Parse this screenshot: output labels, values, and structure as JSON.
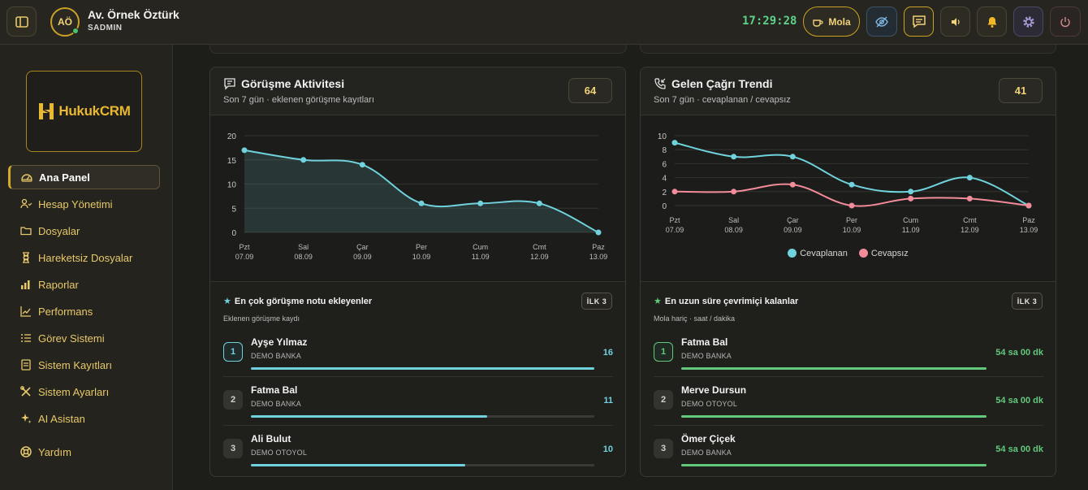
{
  "header": {
    "user_initials": "AÖ",
    "user_name": "Av. Örnek Öztürk",
    "user_role": "SADMIN",
    "clock": "17:29:28",
    "break_label": "Mola"
  },
  "sidebar": {
    "logo_text": "HukukCRM",
    "items": [
      {
        "label": "Ana Panel",
        "icon": "gauge-icon",
        "active": true
      },
      {
        "label": "Hesap Yönetimi",
        "icon": "users-icon"
      },
      {
        "label": "Dosyalar",
        "icon": "folder-icon"
      },
      {
        "label": "Hareketsiz Dosyalar",
        "icon": "hourglass-icon"
      },
      {
        "label": "Raporlar",
        "icon": "bar-chart-icon"
      },
      {
        "label": "Performans",
        "icon": "trend-icon"
      },
      {
        "label": "Görev Sistemi",
        "icon": "list-icon"
      },
      {
        "label": "Sistem Kayıtları",
        "icon": "log-icon"
      },
      {
        "label": "Sistem Ayarları",
        "icon": "tools-icon"
      },
      {
        "label": "AI Asistan",
        "icon": "sparkle-icon"
      },
      {
        "label": "Yardım",
        "icon": "lifebuoy-icon"
      }
    ]
  },
  "cards": {
    "activity": {
      "title": "Görüşme Aktivitesi",
      "subtitle": "Son 7 gün · eklenen görüşme kayıtları",
      "count": "64",
      "ranking_title": "En çok görüşme notu ekleyenler",
      "ranking_subtitle": "Eklenen görüşme kaydı",
      "badge": "İLK 3",
      "rows": [
        {
          "rank": "1",
          "name": "Ayşe Yılmaz",
          "org": "DEMO BANKA",
          "value": "16",
          "fraction": 1.0
        },
        {
          "rank": "2",
          "name": "Fatma Bal",
          "org": "DEMO BANKA",
          "value": "11",
          "fraction": 0.6875
        },
        {
          "rank": "3",
          "name": "Ali Bulut",
          "org": "DEMO OTOYOL",
          "value": "10",
          "fraction": 0.625
        }
      ]
    },
    "calls": {
      "title": "Gelen Çağrı Trendi",
      "subtitle": "Son 7 gün · cevaplanan / cevapsız",
      "count": "41",
      "ranking_title": "En uzun süre çevrimiçi kalanlar",
      "ranking_subtitle": "Mola hariç · saat / dakika",
      "badge": "İLK 3",
      "rows": [
        {
          "rank": "1",
          "name": "Fatma Bal",
          "org": "DEMO BANKA",
          "value": "54 sa 00 dk",
          "fraction": 1.0
        },
        {
          "rank": "2",
          "name": "Merve Dursun",
          "org": "DEMO OTOYOL",
          "value": "54 sa 00 dk",
          "fraction": 1.0
        },
        {
          "rank": "3",
          "name": "Ömer Çiçek",
          "org": "DEMO BANKA",
          "value": "54 sa 00 dk",
          "fraction": 1.0
        }
      ]
    }
  },
  "chart_data": [
    {
      "type": "area",
      "title": "",
      "categories": [
        "Pzt",
        "Sal",
        "Çar",
        "Per",
        "Cum",
        "Cmt",
        "Paz"
      ],
      "dates": [
        "07.09",
        "08.09",
        "09.09",
        "10.09",
        "11.09",
        "12.09",
        "13.09"
      ],
      "yticks": [
        0,
        5,
        10,
        15,
        20
      ],
      "ylim": [
        0,
        20
      ],
      "series": [
        {
          "values": [
            17,
            15,
            14,
            6,
            6,
            6,
            0
          ],
          "color": "#6fd2dc"
        }
      ]
    },
    {
      "type": "line",
      "title": "",
      "categories": [
        "Pzt",
        "Sal",
        "Çar",
        "Per",
        "Cum",
        "Cmt",
        "Paz"
      ],
      "dates": [
        "07.09",
        "08.09",
        "09.09",
        "10.09",
        "11.09",
        "12.09",
        "13.09"
      ],
      "yticks": [
        0,
        2,
        4,
        6,
        8,
        10
      ],
      "ylim": [
        0,
        10
      ],
      "legend": "bottom",
      "series": [
        {
          "name": "Cevaplanan",
          "values": [
            9,
            7,
            7,
            3,
            2,
            4,
            0
          ],
          "color": "#6fd2dc"
        },
        {
          "name": "Cevapsız",
          "values": [
            2,
            2,
            3,
            0,
            1,
            1,
            0
          ],
          "color": "#f28b9a"
        }
      ]
    }
  ]
}
